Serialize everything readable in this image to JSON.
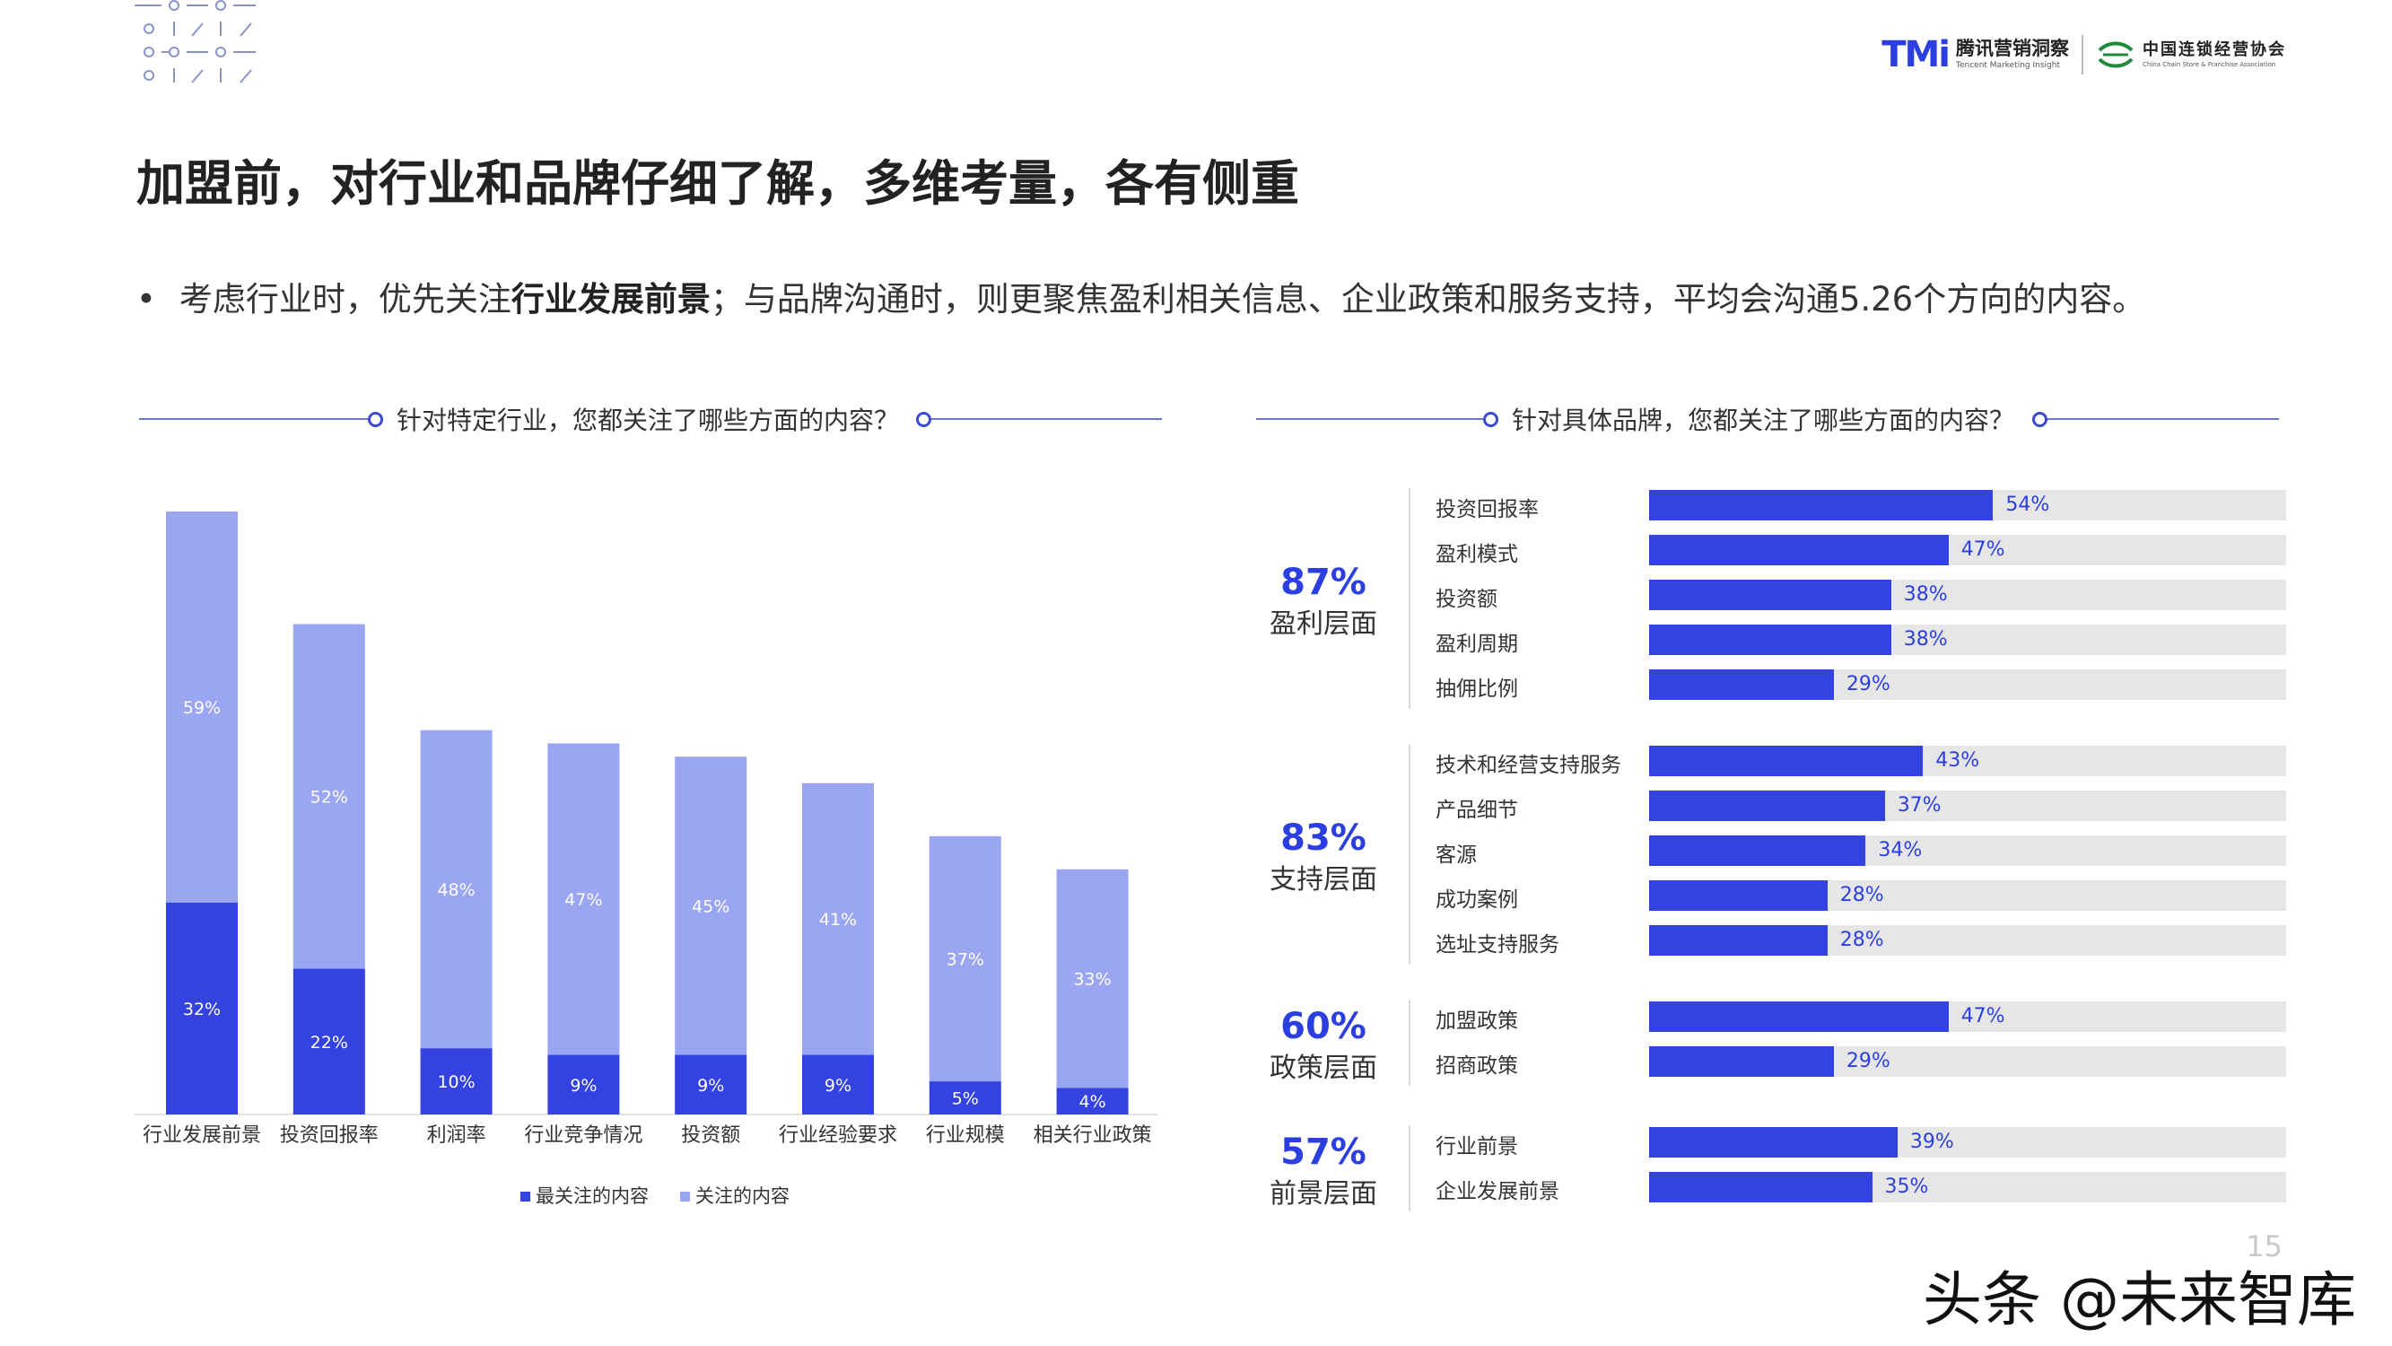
{
  "header": {
    "tmi_mark": "TMi",
    "tmi_name": "腾讯营销洞察",
    "tmi_en": "Tencent Marketing Insight",
    "ccfa_name": "中国连锁经营协会",
    "ccfa_en": "China Chain Store & Franchise Association"
  },
  "title": "加盟前，对行业和品牌仔细了解，多维考量，各有侧重",
  "bullet": {
    "dot": "•",
    "pre": "考虑行业时，优先关注",
    "bold": "行业发展前景",
    "post": "；与品牌沟通时，则更聚焦盈利相关信息、企业政策和服务支持，平均会沟通5.26个方向的内容。"
  },
  "left_question": "针对特定行业，您都关注了哪些方面的内容？",
  "right_question": "针对具体品牌，您都关注了哪些方面的内容？",
  "colors": {
    "dark": "#3442e0",
    "light": "#9aa6f2",
    "track": "#e6e6e6",
    "accent": "#2b3fe0"
  },
  "chart_data": [
    {
      "type": "bar",
      "stacked": true,
      "categories": [
        "行业发展前景",
        "投资回报率",
        "利润率",
        "行业竞争情况",
        "投资额",
        "行业经验要求",
        "行业规模",
        "相关行业政策"
      ],
      "series": [
        {
          "name": "最关注的内容",
          "values": [
            32,
            22,
            10,
            9,
            9,
            9,
            5,
            4
          ]
        },
        {
          "name": "关注的内容",
          "values": [
            59,
            52,
            48,
            47,
            45,
            41,
            37,
            33
          ]
        }
      ],
      "value_suffix": "%",
      "ylim": [
        0,
        91
      ],
      "legend": "bottom-center"
    },
    {
      "type": "bar",
      "orientation": "horizontal",
      "xlim": [
        0,
        100
      ],
      "value_suffix": "%",
      "groups": [
        {
          "pct": "87%",
          "label": "盈利层面",
          "items": [
            {
              "label": "投资回报率",
              "value": 54
            },
            {
              "label": "盈利模式",
              "value": 47
            },
            {
              "label": "投资额",
              "value": 38
            },
            {
              "label": "盈利周期",
              "value": 38
            },
            {
              "label": "抽佣比例",
              "value": 29
            }
          ]
        },
        {
          "pct": "83%",
          "label": "支持层面",
          "items": [
            {
              "label": "技术和经营支持服务",
              "value": 43
            },
            {
              "label": "产品细节",
              "value": 37
            },
            {
              "label": "客源",
              "value": 34
            },
            {
              "label": "成功案例",
              "value": 28
            },
            {
              "label": "选址支持服务",
              "value": 28
            }
          ]
        },
        {
          "pct": "60%",
          "label": "政策层面",
          "items": [
            {
              "label": "加盟政策",
              "value": 47
            },
            {
              "label": "招商政策",
              "value": 29
            }
          ]
        },
        {
          "pct": "57%",
          "label": "前景层面",
          "items": [
            {
              "label": "行业前景",
              "value": 39
            },
            {
              "label": "企业发展前景",
              "value": 35
            }
          ]
        }
      ]
    }
  ],
  "page_number": "15",
  "watermark": "头条 @未来智库"
}
